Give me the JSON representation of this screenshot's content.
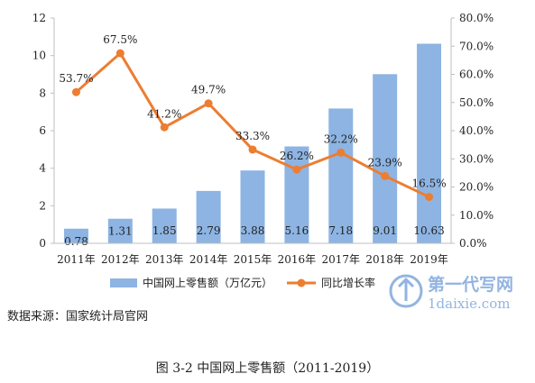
{
  "chart_data": {
    "type": "bar+line",
    "categories": [
      "2011年",
      "2012年",
      "2013年",
      "2014年",
      "2015年",
      "2016年",
      "2017年",
      "2018年",
      "2019年"
    ],
    "series": [
      {
        "name": "中国网上零售额（万亿元）",
        "type": "bar",
        "axis": "left",
        "values": [
          0.78,
          1.31,
          1.85,
          2.79,
          3.88,
          5.16,
          7.18,
          9.01,
          10.63
        ],
        "labels": [
          "0.78",
          "1.31",
          "1.85",
          "2.79",
          "3.88",
          "5.16",
          "7.18",
          "9.01",
          "10.63"
        ]
      },
      {
        "name": "同比增长率",
        "type": "line",
        "axis": "right",
        "values": [
          53.7,
          67.5,
          41.2,
          49.7,
          33.3,
          26.2,
          32.2,
          23.9,
          16.5
        ],
        "labels": [
          "53.7%",
          "67.5%",
          "41.2%",
          "49.7%",
          "33.3%",
          "26.2%",
          "32.2%",
          "23.9%",
          "16.5%"
        ]
      }
    ],
    "y_left": {
      "ylim": [
        0,
        12
      ],
      "ticks": [
        "0",
        "2",
        "4",
        "6",
        "8",
        "10",
        "12"
      ]
    },
    "y_right": {
      "ylim": [
        0,
        80
      ],
      "ticks": [
        "0.0%",
        "10.0%",
        "20.0%",
        "30.0%",
        "40.0%",
        "50.0%",
        "60.0%",
        "70.0%",
        "80.0%"
      ]
    },
    "legend_position": "bottom",
    "grid": false
  },
  "colors": {
    "bar": "#8DB4E2",
    "line": "#ED7D31",
    "axis": "#BFBFBF",
    "text": "#222222"
  },
  "source_note": "数据来源：国家统计局官网",
  "figure_caption": "图 3-2  中国网上零售额（2011-2019）",
  "watermark": {
    "line1": "第一代写网",
    "line2": "1daixie.com"
  }
}
